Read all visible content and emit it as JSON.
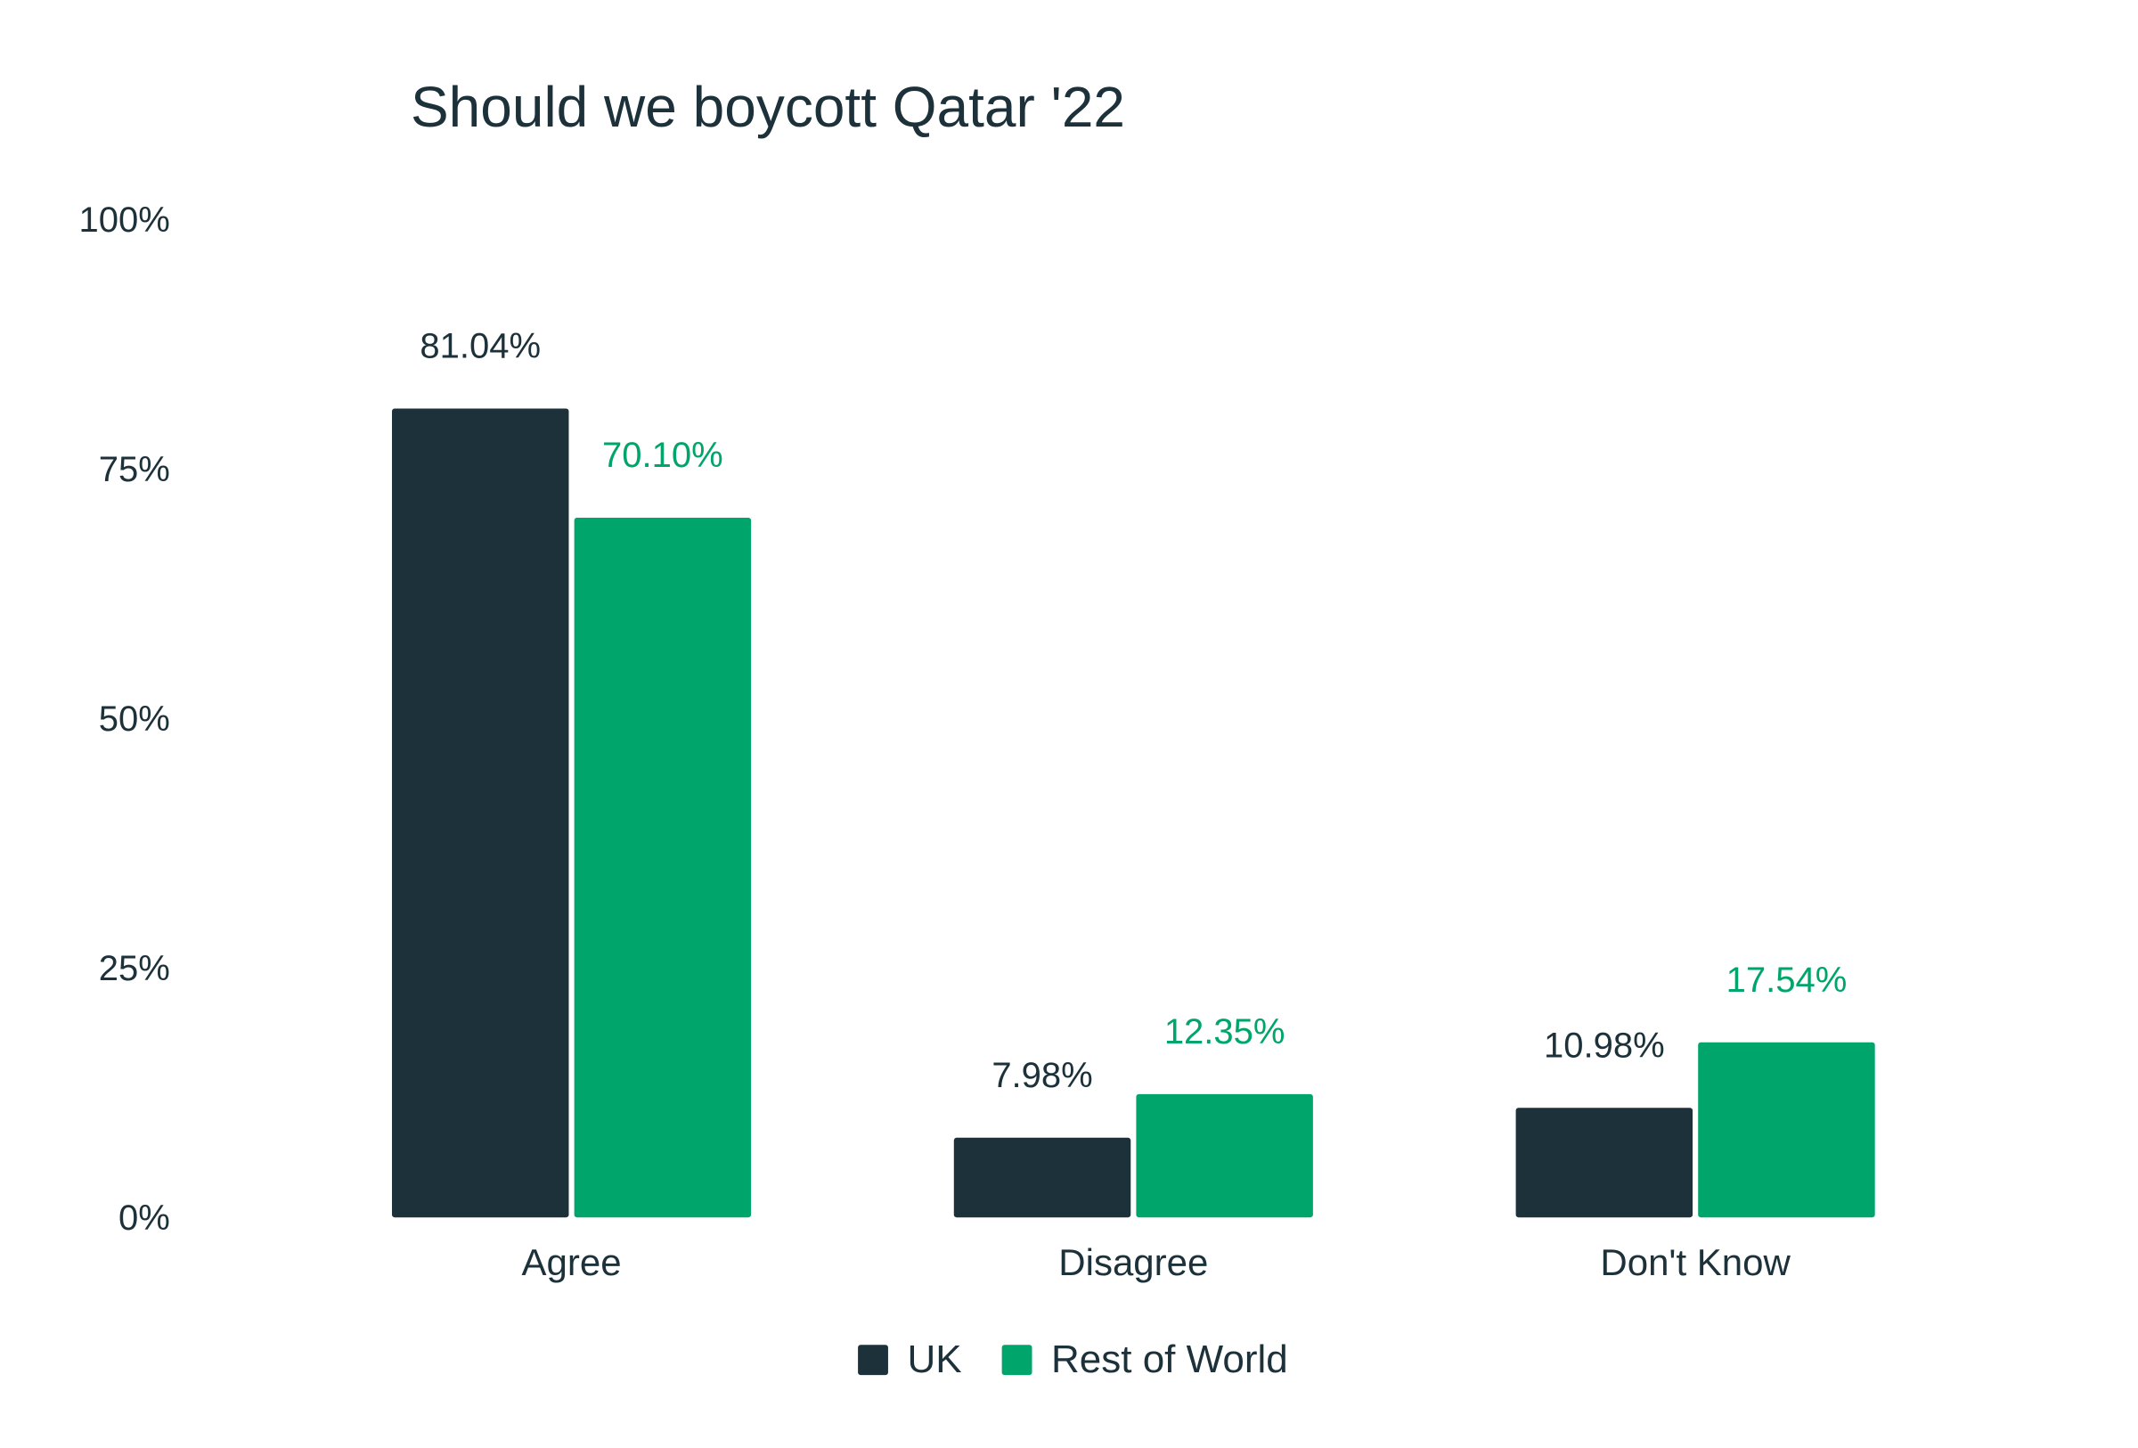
{
  "chart_data": {
    "type": "bar",
    "title": "Should we boycott Qatar '22",
    "xlabel": "",
    "ylabel": "",
    "ylim": [
      0,
      100
    ],
    "yticks": [
      "0%",
      "25%",
      "50%",
      "75%",
      "100%"
    ],
    "ytick_values": [
      0,
      25,
      50,
      75,
      100
    ],
    "grid": false,
    "legend_position": "bottom",
    "categories": [
      "Agree",
      "Disagree",
      "Don't Know"
    ],
    "series": [
      {
        "name": "UK",
        "color": "#1c313a",
        "values": [
          81.04,
          7.98,
          10.98
        ],
        "labels": [
          "81.04%",
          "7.98%",
          "10.98%"
        ]
      },
      {
        "name": "Rest of World",
        "color": "#00a56b",
        "values": [
          70.1,
          12.35,
          17.54
        ],
        "labels": [
          "70.10%",
          "12.35%",
          "17.54%"
        ]
      }
    ]
  }
}
